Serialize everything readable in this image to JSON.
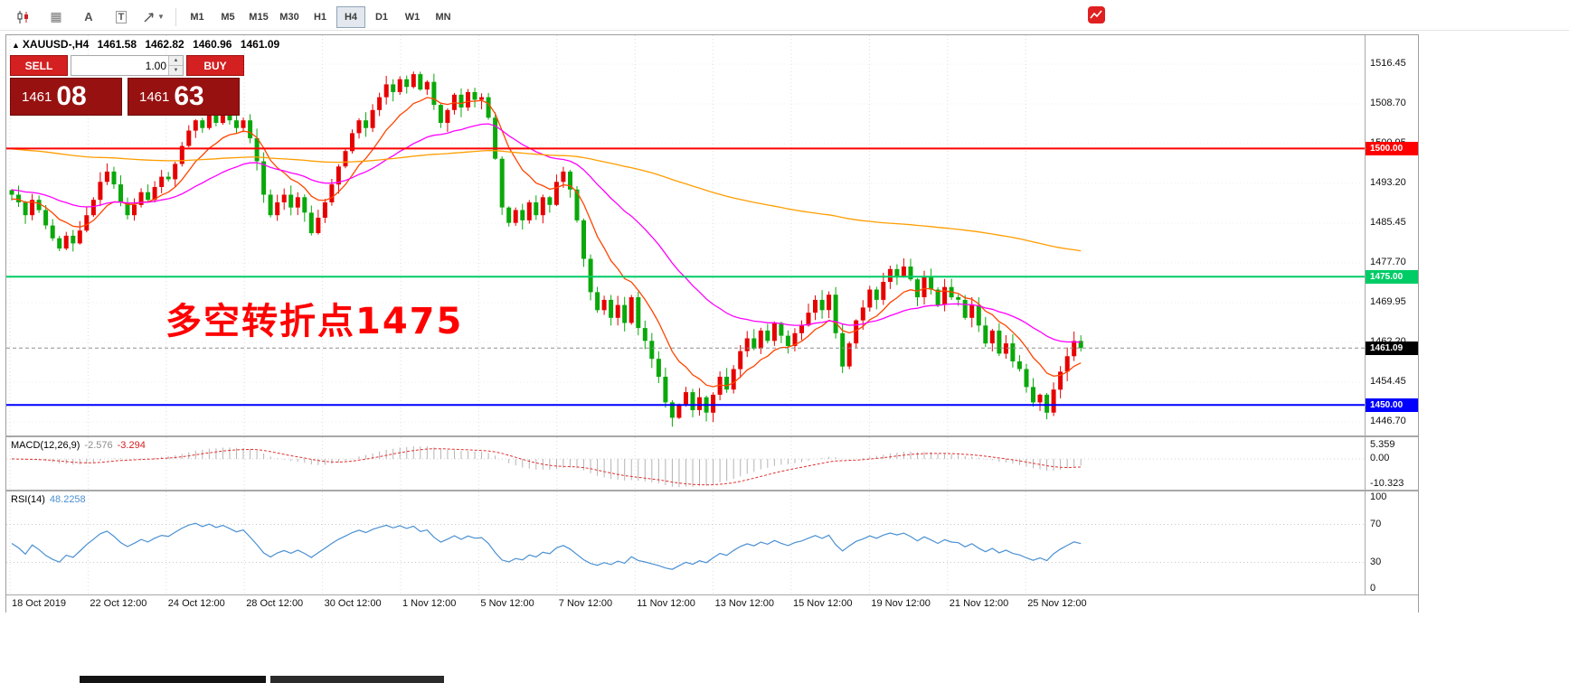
{
  "toolbar": {
    "icon_a_glyph": "A",
    "icon_t_glyph": "T",
    "timeframes": [
      {
        "label": "M1",
        "active": false
      },
      {
        "label": "M5",
        "active": false
      },
      {
        "label": "M15",
        "active": false
      },
      {
        "label": "M30",
        "active": false
      },
      {
        "label": "H1",
        "active": false
      },
      {
        "label": "H4",
        "active": true
      },
      {
        "label": "D1",
        "active": false
      },
      {
        "label": "W1",
        "active": false
      },
      {
        "label": "MN",
        "active": false
      }
    ]
  },
  "chart": {
    "header": {
      "arrow": "▲",
      "symbol": "XAUUSD-,H4",
      "open": "1461.58",
      "high": "1462.82",
      "low": "1460.96",
      "close": "1461.09"
    },
    "trade_panel": {
      "sell_label": "SELL",
      "buy_label": "BUY",
      "volume": "1.00",
      "bid_main": "1461",
      "bid_big": "08",
      "ask_main": "1461",
      "ask_big": "63"
    },
    "annotation": {
      "text": "多空转折点1475",
      "color": "#ff0000"
    }
  },
  "macd": {
    "name": "MACD(12,26,9)",
    "value_main": "-2.576",
    "value_signal": "-3.294",
    "axis": [
      "5.359",
      "0.00",
      "-10.323"
    ]
  },
  "rsi": {
    "name": "RSI(14)",
    "value": "48.2258",
    "axis": [
      "100",
      "70",
      "30",
      "0"
    ]
  },
  "time_axis": [
    "18 Oct 2019",
    "22 Oct 12:00",
    "24 Oct 12:00",
    "28 Oct 12:00",
    "30 Oct 12:00",
    "1 Nov 12:00",
    "5 Nov 12:00",
    "7 Nov 12:00",
    "11 Nov 12:00",
    "13 Nov 12:00",
    "15 Nov 12:00",
    "19 Nov 12:00",
    "21 Nov 12:00",
    "25 Nov 12:00"
  ],
  "chart_data": {
    "type": "candlestick",
    "symbol": "XAUUSD",
    "timeframe": "H4",
    "last_price": 1461.09,
    "current_ohlc": {
      "open": 1461.58,
      "high": 1462.82,
      "low": 1460.96,
      "close": 1461.09
    },
    "price_axis_labels": [
      "1516.45",
      "1508.70",
      "1500.95",
      "1493.20",
      "1485.45",
      "1477.70",
      "1469.95",
      "1462.20",
      "1454.45",
      "1446.70"
    ],
    "price_axis_top": 1516.45,
    "price_axis_step": 7.75,
    "up_color": "#e60000",
    "down_color": "#0aa80a",
    "closes": [
      1491,
      1489.5,
      1487,
      1490,
      1488,
      1485,
      1482.5,
      1480.5,
      1483,
      1481.5,
      1484,
      1487,
      1490,
      1493.5,
      1495.5,
      1493,
      1489.5,
      1487,
      1489,
      1491.5,
      1490,
      1492.5,
      1494.5,
      1494,
      1497,
      1500.5,
      1503.5,
      1505.5,
      1504,
      1506.5,
      1505,
      1507,
      1505.5,
      1504,
      1505.5,
      1502,
      1497.5,
      1491,
      1487,
      1489.5,
      1491,
      1488.5,
      1490.5,
      1487.5,
      1483.5,
      1486.5,
      1489.5,
      1493,
      1496.5,
      1499.5,
      1503,
      1505.5,
      1504,
      1507.5,
      1510,
      1512.5,
      1511,
      1513.5,
      1512,
      1514.5,
      1511.5,
      1513,
      1508.5,
      1505,
      1507.5,
      1510.5,
      1508,
      1511,
      1509.5,
      1510,
      1506,
      1498,
      1488.5,
      1485.5,
      1488,
      1486,
      1489.5,
      1487,
      1490.5,
      1489,
      1493.5,
      1495.5,
      1492,
      1486,
      1478.5,
      1472,
      1468.5,
      1470.5,
      1467,
      1469.5,
      1466,
      1471,
      1465,
      1462.5,
      1459,
      1455.5,
      1450.5,
      1447.5,
      1450,
      1452.5,
      1449,
      1451.5,
      1448.5,
      1452,
      1455.5,
      1453,
      1457,
      1460.5,
      1463,
      1461,
      1464.5,
      1462.5,
      1466,
      1463.5,
      1461.5,
      1464,
      1465.5,
      1468,
      1470.5,
      1468.5,
      1471.5,
      1464,
      1457.5,
      1462,
      1466.5,
      1469,
      1472.5,
      1470.5,
      1474,
      1476.5,
      1475,
      1477,
      1474.5,
      1471,
      1475,
      1472.5,
      1469.5,
      1473,
      1471,
      1470.5,
      1467,
      1469.5,
      1465.5,
      1462,
      1464.5,
      1460,
      1462,
      1458.5,
      1457,
      1453.5,
      1450.5,
      1452,
      1448.5,
      1453,
      1456.5,
      1459.5,
      1462.5,
      1461.09
    ],
    "moving_averages": [
      {
        "period": 10,
        "seed": 1490,
        "color": "#ff4500"
      },
      {
        "period": 34,
        "seed": 1492,
        "color": "#ff00ff"
      },
      {
        "period": 200,
        "seed": 1500,
        "color": "#ff9d00"
      }
    ],
    "levels": [
      {
        "price": 1500,
        "label": "1500.00",
        "color": "#ff0000"
      },
      {
        "price": 1475,
        "label": "1475.00",
        "color": "#00cc66"
      },
      {
        "price": 1450,
        "label": "1450.00",
        "color": "#0000ff"
      }
    ],
    "bid_line": {
      "price": 1461.09,
      "color": "#909090"
    },
    "macd": {
      "fast": 12,
      "slow": 26,
      "signal": 9,
      "current_main": -2.576,
      "current_signal": -3.294,
      "axis_ticks": [
        5.359,
        0,
        -10.323
      ],
      "hist_color": "#b4b4b4",
      "signal_color": "#e03030"
    },
    "rsi": {
      "period": 14,
      "current": 48.2258,
      "levels": [
        70,
        30
      ],
      "axis_ticks": [
        100,
        70,
        30,
        0
      ],
      "color": "#4a90d2"
    }
  }
}
